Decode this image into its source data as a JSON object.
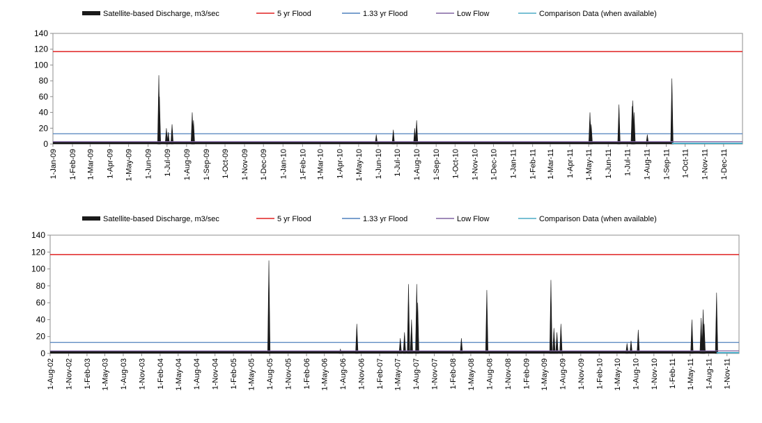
{
  "chart_data": [
    {
      "type": "area",
      "legend": [
        "Satellite-based Discharge, m3/sec",
        "5 yr Flood",
        "1.33 yr Flood",
        "Low Flow",
        "Comparison Data (when available)"
      ],
      "ylim": [
        0,
        140
      ],
      "yticks": [
        0,
        20,
        40,
        60,
        80,
        100,
        120,
        140
      ],
      "xticks": [
        "1-Jan-09",
        "1-Feb-09",
        "1-Mar-09",
        "1-Apr-09",
        "1-May-09",
        "1-Jun-09",
        "1-Jul-09",
        "1-Aug-09",
        "1-Sep-09",
        "1-Oct-09",
        "1-Nov-09",
        "1-Dec-09",
        "1-Jan-10",
        "1-Feb-10",
        "1-Mar-10",
        "1-Apr-10",
        "1-May-10",
        "1-Jun-10",
        "1-Jul-10",
        "1-Aug-10",
        "1-Sep-10",
        "1-Oct-10",
        "1-Nov-10",
        "1-Dec-10",
        "1-Jan-11",
        "1-Feb-11",
        "1-Mar-11",
        "1-Apr-11",
        "1-May-11",
        "1-Jun-11",
        "1-Jul-11",
        "1-Aug-11",
        "1-Sep-11",
        "1-Oct-11",
        "1-Nov-11",
        "1-Dec-11"
      ],
      "x_range": [
        "2009-01-01",
        "2011-12-31"
      ],
      "thresholds": {
        "five_yr_flood": 117,
        "one_33_yr_flood": 13,
        "low_flow": 3
      },
      "colors": {
        "discharge": "#1a1a1a",
        "five_yr_flood": "#e02020",
        "one_33_yr_flood": "#4f81bd",
        "low_flow": "#8064a2",
        "comparison": "#4bacc6"
      },
      "series": [
        {
          "name": "Satellite-based Discharge, m3/sec",
          "base": 3,
          "end_date": "2011-09-10",
          "peaks": [
            {
              "date": "2009-06-18",
              "value": 87
            },
            {
              "date": "2009-06-19",
              "value": 60
            },
            {
              "date": "2009-06-30",
              "value": 20
            },
            {
              "date": "2009-07-03",
              "value": 15
            },
            {
              "date": "2009-07-09",
              "value": 25
            },
            {
              "date": "2009-08-10",
              "value": 40
            },
            {
              "date": "2009-08-12",
              "value": 30
            },
            {
              "date": "2010-05-29",
              "value": 12
            },
            {
              "date": "2010-06-25",
              "value": 18
            },
            {
              "date": "2010-07-29",
              "value": 20
            },
            {
              "date": "2010-08-01",
              "value": 30
            },
            {
              "date": "2011-05-03",
              "value": 40
            },
            {
              "date": "2011-05-05",
              "value": 25
            },
            {
              "date": "2011-06-18",
              "value": 50
            },
            {
              "date": "2011-07-09",
              "value": 48
            },
            {
              "date": "2011-07-10",
              "value": 55
            },
            {
              "date": "2011-07-12",
              "value": 40
            },
            {
              "date": "2011-08-02",
              "value": 12
            },
            {
              "date": "2011-09-10",
              "value": 83
            }
          ]
        },
        {
          "name": "Comparison Data (when available)",
          "value": 0,
          "start_date": "2011-09-10"
        }
      ]
    },
    {
      "type": "area",
      "legend": [
        "Satellite-based Discharge, m3/sec",
        "5 yr Flood",
        "1.33 yr Flood",
        "Low Flow",
        "Comparison Data (when available)"
      ],
      "ylim": [
        0,
        140
      ],
      "yticks": [
        0,
        20,
        40,
        60,
        80,
        100,
        120,
        140
      ],
      "xticks": [
        "1-Aug-02",
        "1-Nov-02",
        "1-Feb-03",
        "1-May-03",
        "1-Aug-03",
        "1-Nov-03",
        "1-Feb-04",
        "1-May-04",
        "1-Aug-04",
        "1-Nov-04",
        "1-Feb-05",
        "1-May-05",
        "1-Aug-05",
        "1-Nov-05",
        "1-Feb-06",
        "1-May-06",
        "1-Aug-06",
        "1-Nov-06",
        "1-Feb-07",
        "1-May-07",
        "1-Aug-07",
        "1-Nov-07",
        "1-Feb-08",
        "1-May-08",
        "1-Aug-08",
        "1-Nov-08",
        "1-Feb-09",
        "1-May-09",
        "1-Aug-09",
        "1-Nov-09",
        "1-Feb-10",
        "1-May-10",
        "1-Aug-10",
        "1-Nov-10",
        "1-Feb-11",
        "1-May-11",
        "1-Aug-11",
        "1-Nov-11"
      ],
      "x_range": [
        "2002-08-01",
        "2011-12-31"
      ],
      "thresholds": {
        "five_yr_flood": 117,
        "one_33_yr_flood": 13,
        "low_flow": 3
      },
      "colors": {
        "discharge": "#1a1a1a",
        "five_yr_flood": "#e02020",
        "one_33_yr_flood": "#4f81bd",
        "low_flow": "#8064a2",
        "comparison": "#4bacc6"
      },
      "series": [
        {
          "name": "Satellite-based Discharge, m3/sec",
          "base": 3,
          "end_date": "2011-09-10",
          "peaks": [
            {
              "date": "2005-07-28",
              "value": 110
            },
            {
              "date": "2006-07-20",
              "value": 5
            },
            {
              "date": "2006-10-10",
              "value": 35
            },
            {
              "date": "2007-05-15",
              "value": 18
            },
            {
              "date": "2007-06-05",
              "value": 25
            },
            {
              "date": "2007-06-25",
              "value": 82
            },
            {
              "date": "2007-07-10",
              "value": 40
            },
            {
              "date": "2007-08-05",
              "value": 82
            },
            {
              "date": "2007-08-10",
              "value": 60
            },
            {
              "date": "2008-03-15",
              "value": 18
            },
            {
              "date": "2008-07-20",
              "value": 75
            },
            {
              "date": "2009-06-05",
              "value": 87
            },
            {
              "date": "2009-06-20",
              "value": 30
            },
            {
              "date": "2009-07-05",
              "value": 25
            },
            {
              "date": "2009-07-25",
              "value": 35
            },
            {
              "date": "2010-06-20",
              "value": 12
            },
            {
              "date": "2010-07-10",
              "value": 15
            },
            {
              "date": "2010-08-15",
              "value": 28
            },
            {
              "date": "2011-05-10",
              "value": 40
            },
            {
              "date": "2011-06-25",
              "value": 42
            },
            {
              "date": "2011-07-05",
              "value": 52
            },
            {
              "date": "2011-07-10",
              "value": 35
            },
            {
              "date": "2011-09-10",
              "value": 72
            }
          ]
        },
        {
          "name": "Comparison Data (when available)",
          "value": 0,
          "start_date": "2011-09-10"
        }
      ]
    }
  ]
}
